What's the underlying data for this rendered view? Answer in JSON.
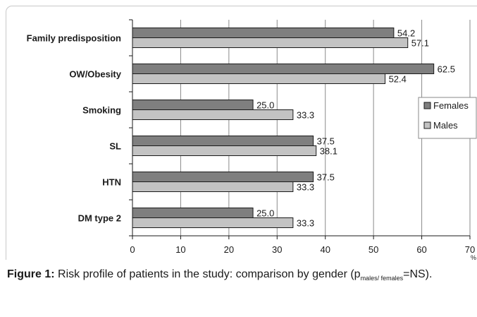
{
  "chart_data": {
    "type": "bar",
    "orientation": "horizontal",
    "categories": [
      "Family predisposition",
      "OW/Obesity",
      "Smoking",
      "SL",
      "HTN",
      "DM type 2"
    ],
    "series": [
      {
        "name": "Females",
        "values": [
          54.2,
          62.5,
          25.0,
          37.5,
          37.5,
          25.0
        ],
        "labels": [
          "54.2",
          "62.5",
          "25.0",
          "37.5",
          "37.5",
          "25.0"
        ],
        "color": "#7f7f7f"
      },
      {
        "name": "Males",
        "values": [
          57.1,
          52.4,
          33.3,
          38.1,
          33.3,
          33.3
        ],
        "labels": [
          "57.1",
          "52.4",
          "33.3",
          "38.1",
          "33.3",
          "33.3"
        ],
        "color": "#c3c3c3"
      }
    ],
    "xlim": [
      0,
      70
    ],
    "xticks": [
      "0",
      "10",
      "20",
      "30",
      "40",
      "50",
      "60",
      "70"
    ],
    "xunit": "%",
    "grid": true,
    "legend_position": "right"
  },
  "caption": {
    "label": "Figure 1:",
    "text": " Risk profile of patients in the study: comparison by gender (p",
    "sub": "males/ females",
    "tail": "=NS)."
  }
}
